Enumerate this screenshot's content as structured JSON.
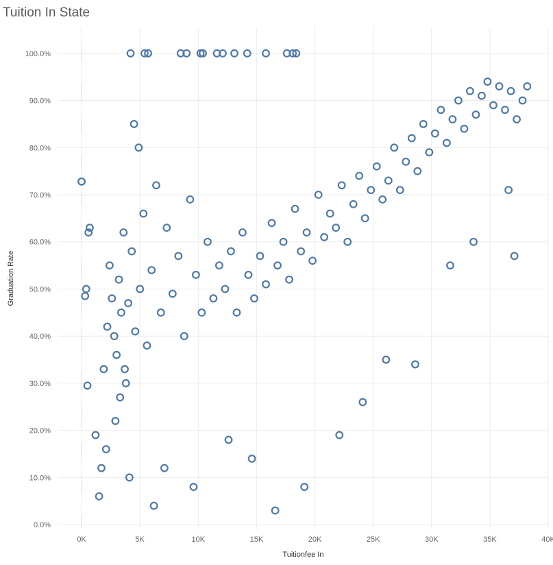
{
  "chart_data": {
    "type": "scatter",
    "title": "Tuition In State",
    "xlabel": "Tuitionfee In",
    "ylabel": "Graduation Rate",
    "xlim": [
      -2000,
      40000
    ],
    "ylim": [
      -0.01,
      1.055
    ],
    "x_ticks": [
      0,
      5000,
      10000,
      15000,
      20000,
      25000,
      30000,
      35000,
      40000
    ],
    "x_tick_labels": [
      "0K",
      "5K",
      "10K",
      "15K",
      "20K",
      "25K",
      "30K",
      "35K",
      "40K"
    ],
    "y_ticks": [
      0,
      0.1,
      0.2,
      0.3,
      0.4,
      0.5,
      0.6,
      0.7,
      0.8,
      0.9,
      1.0
    ],
    "y_tick_labels": [
      "0.0%",
      "10.0%",
      "20.0%",
      "30.0%",
      "40.0%",
      "50.0%",
      "60.0%",
      "70.0%",
      "80.0%",
      "90.0%",
      "100.0%"
    ],
    "grid": true,
    "marker": "open-circle",
    "color": "#4e79a7",
    "series": [
      {
        "x": [
          4200,
          5400,
          5700,
          8500,
          9000,
          10200,
          10400,
          11600,
          12100,
          13100,
          14200,
          15800,
          17600,
          18100,
          18400,
          0,
          0,
          300,
          400,
          500,
          600,
          700,
          1200,
          1500,
          1700,
          1900,
          2200,
          2400,
          2600,
          2800,
          3000,
          3200,
          3400,
          3600,
          3800,
          4000,
          4300,
          4600,
          5000,
          5300,
          5600,
          6000,
          6400,
          6800,
          7300,
          7800,
          8300,
          8800,
          9300,
          9800,
          10300,
          10800,
          11300,
          11800,
          12300,
          12800,
          13300,
          13800,
          14300,
          14800,
          15300,
          15800,
          16300,
          16800,
          17300,
          17800,
          18300,
          18800,
          19300,
          19800,
          20300,
          20800,
          21300,
          21800,
          22300,
          22800,
          23300,
          23800,
          24300,
          24800,
          25300,
          25800,
          26300,
          26800,
          27300,
          27800,
          28300,
          28800,
          29300,
          29800,
          30300,
          30800,
          31300,
          31800,
          32300,
          32800,
          33300,
          33800,
          34300,
          34800,
          35300,
          35800,
          36300,
          36800,
          37300,
          37800,
          38200,
          2100,
          2900,
          3300,
          3700,
          4100,
          4500,
          4900,
          6200,
          7100,
          9600,
          12600,
          14600,
          16600,
          19100,
          22100,
          24100,
          26100,
          28600,
          31600,
          33600,
          36600,
          37100
        ],
        "y": [
          1.0,
          1.0,
          1.0,
          1.0,
          1.0,
          1.0,
          1.0,
          1.0,
          1.0,
          1.0,
          1.0,
          1.0,
          1.0,
          1.0,
          1.0,
          0.728,
          0.728,
          0.485,
          0.5,
          0.295,
          0.62,
          0.63,
          0.19,
          0.06,
          0.12,
          0.33,
          0.42,
          0.55,
          0.48,
          0.4,
          0.36,
          0.52,
          0.45,
          0.62,
          0.3,
          0.47,
          0.58,
          0.41,
          0.5,
          0.66,
          0.38,
          0.54,
          0.72,
          0.45,
          0.63,
          0.49,
          0.57,
          0.4,
          0.69,
          0.53,
          0.45,
          0.6,
          0.48,
          0.55,
          0.5,
          0.58,
          0.45,
          0.62,
          0.53,
          0.48,
          0.57,
          0.51,
          0.64,
          0.55,
          0.6,
          0.52,
          0.67,
          0.58,
          0.62,
          0.56,
          0.7,
          0.61,
          0.66,
          0.63,
          0.72,
          0.6,
          0.68,
          0.74,
          0.65,
          0.71,
          0.76,
          0.69,
          0.73,
          0.8,
          0.71,
          0.77,
          0.82,
          0.75,
          0.85,
          0.79,
          0.83,
          0.88,
          0.81,
          0.86,
          0.9,
          0.84,
          0.92,
          0.87,
          0.91,
          0.94,
          0.89,
          0.93,
          0.88,
          0.92,
          0.86,
          0.9,
          0.93,
          0.16,
          0.22,
          0.27,
          0.33,
          0.1,
          0.85,
          0.8,
          0.04,
          0.12,
          0.08,
          0.18,
          0.14,
          0.03,
          0.08,
          0.19,
          0.26,
          0.35,
          0.34,
          0.55,
          0.6,
          0.71,
          0.57
        ]
      }
    ]
  }
}
